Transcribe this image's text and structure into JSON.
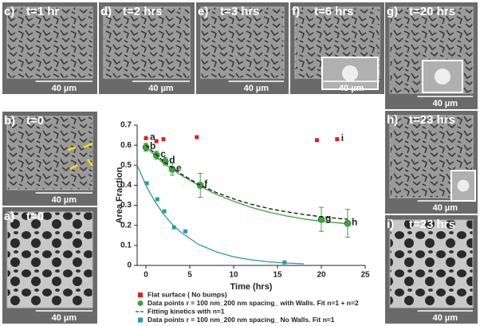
{
  "panels": [
    {
      "label": "c)",
      "time": "t=1 hr",
      "scale": "40 µm"
    },
    {
      "label": "d)",
      "time": "t=2 hrs",
      "scale": "40 µm"
    },
    {
      "label": "e)",
      "time": "t=3 hrs",
      "scale": "40 µm"
    },
    {
      "label": "f)",
      "time": "t=6 hrs",
      "scale": "40 µm"
    },
    {
      "label": "g)",
      "time": "t=20 hrs",
      "scale": "40 µm"
    },
    {
      "label": "b)",
      "time": "t=0",
      "scale": "40 µm"
    },
    {
      "label": "a)",
      "time": "t=0",
      "scale": "40 µm"
    },
    {
      "label": "h)",
      "time": "t=23 hrs",
      "scale": "40 µm"
    },
    {
      "label": "i)",
      "time": "t=23 hrs",
      "scale": "40 µm"
    }
  ],
  "chart_data": {
    "type": "scatter",
    "x_label": "Time (hrs)",
    "y_label": "Area Fraction",
    "xlim": [
      -1,
      25
    ],
    "xticks": [
      0,
      5,
      10,
      15,
      20,
      25
    ],
    "ylim": [
      0,
      0.7
    ],
    "yticks": [
      0,
      0.1,
      0.2,
      0.3,
      0.4,
      0.5,
      0.6,
      0.7
    ],
    "series": [
      {
        "name": "Flat surface ( No bumps)",
        "color": "#e02020",
        "marker": "square",
        "x": [
          0,
          1.2,
          2,
          5.8,
          19.5,
          21.8
        ],
        "values": [
          0.635,
          0.62,
          0.63,
          0.64,
          0.625,
          0.63
        ],
        "point_labels": [
          "a",
          null,
          null,
          null,
          null,
          "i"
        ]
      },
      {
        "name": "Data points r = 100 nm_200 nm spacing_ with Walls. Fit n=1 + n=2",
        "color": "#3aa63a",
        "marker": "circle",
        "x": [
          0,
          1.2,
          2.2,
          3,
          6.2,
          20,
          23
        ],
        "values": [
          0.59,
          0.55,
          0.52,
          0.48,
          0.4,
          0.23,
          0.21
        ],
        "errors": [
          0.02,
          0.02,
          0.02,
          0.03,
          0.06,
          0.06,
          0.07
        ],
        "point_labels": [
          "b",
          "c",
          "d",
          "e",
          "f",
          "g",
          "h"
        ],
        "fit_x": [
          0,
          2,
          4,
          6,
          8,
          10,
          12,
          14,
          16,
          18,
          20,
          22,
          23
        ],
        "fit_values": [
          0.59,
          0.51,
          0.45,
          0.4,
          0.355,
          0.32,
          0.29,
          0.266,
          0.247,
          0.232,
          0.22,
          0.212,
          0.208
        ]
      },
      {
        "name": "Fitting kinetics with n=1",
        "color": "#111111",
        "dash": true,
        "x": [
          0,
          2,
          4,
          6,
          8,
          10,
          12,
          14,
          16,
          18,
          20,
          22,
          23
        ],
        "values": [
          0.6,
          0.52,
          0.457,
          0.405,
          0.364,
          0.332,
          0.305,
          0.284,
          0.268,
          0.254,
          0.243,
          0.234,
          0.231
        ]
      },
      {
        "name": "Data points r = 100 nm_200 nm spacing_  No Walls. Fit n=1",
        "color": "#2a9aa8",
        "marker": "square",
        "x": [
          0.1,
          1.3,
          2.1,
          3.2,
          4.5,
          15.8
        ],
        "values": [
          0.41,
          0.33,
          0.27,
          0.19,
          0.17,
          0.015
        ],
        "fit_x": [
          -1,
          0,
          1,
          2,
          3,
          4,
          6,
          8,
          10,
          12,
          14,
          16,
          18
        ],
        "fit_values": [
          0.5,
          0.4,
          0.32,
          0.256,
          0.205,
          0.165,
          0.105,
          0.068,
          0.043,
          0.028,
          0.018,
          0.012,
          0.008
        ]
      }
    ]
  }
}
